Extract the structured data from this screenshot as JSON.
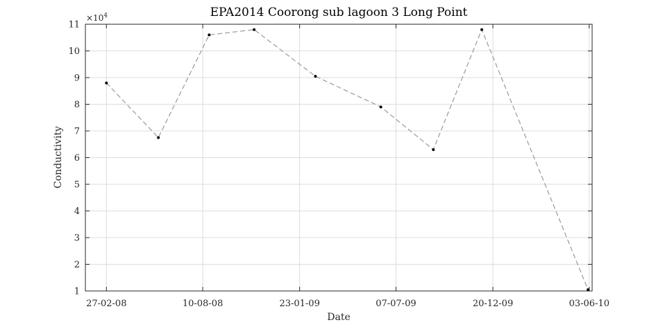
{
  "chart_data": {
    "type": "line",
    "title": "EPA2014 Coorong sub lagoon 3 Long Point",
    "xlabel": "Date",
    "ylabel": "Conductivity",
    "y_multiplier_label": "×10",
    "y_multiplier_exponent": "4",
    "x_range": [
      "2008-01-22",
      "2010-06-08"
    ],
    "ylim": [
      1,
      11
    ],
    "x_ticks": [
      {
        "date": "2008-02-27",
        "label": "27-02-08"
      },
      {
        "date": "2008-08-10",
        "label": "10-08-08"
      },
      {
        "date": "2009-01-23",
        "label": "23-01-09"
      },
      {
        "date": "2009-07-07",
        "label": "07-07-09"
      },
      {
        "date": "2009-12-20",
        "label": "20-12-09"
      },
      {
        "date": "2010-06-03",
        "label": "03-06-10"
      }
    ],
    "y_ticks": [
      1,
      2,
      3,
      4,
      5,
      6,
      7,
      8,
      9,
      10,
      11
    ],
    "grid": true,
    "line_style": "dashed",
    "line_color": "#999999",
    "marker_color": "#000000",
    "series": [
      {
        "points": [
          {
            "x": "2008-02-27",
            "y": 8.8
          },
          {
            "x": "2008-05-26",
            "y": 6.75
          },
          {
            "x": "2008-08-21",
            "y": 10.6
          },
          {
            "x": "2008-11-06",
            "y": 10.8
          },
          {
            "x": "2009-02-19",
            "y": 9.05
          },
          {
            "x": "2009-06-11",
            "y": 7.9
          },
          {
            "x": "2009-09-09",
            "y": 6.3
          },
          {
            "x": "2009-12-01",
            "y": 10.8
          },
          {
            "x": "2010-06-01",
            "y": 1.05
          }
        ]
      }
    ]
  }
}
